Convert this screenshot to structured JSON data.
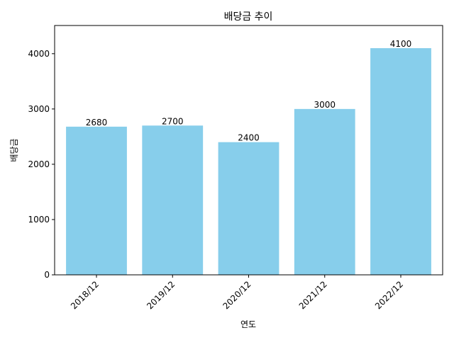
{
  "chart_data": {
    "type": "bar",
    "title": "배당금 추이",
    "xlabel": "연도",
    "ylabel": "배당금",
    "categories": [
      "2018/12",
      "2019/12",
      "2020/12",
      "2021/12",
      "2022/12"
    ],
    "values": [
      2680,
      2700,
      2400,
      3000,
      4100
    ],
    "ylim": [
      0,
      4510
    ],
    "yticks": [
      0,
      1000,
      2000,
      3000,
      4000
    ],
    "bar_color": "#87ceeb",
    "grid": false,
    "legend": "none"
  }
}
